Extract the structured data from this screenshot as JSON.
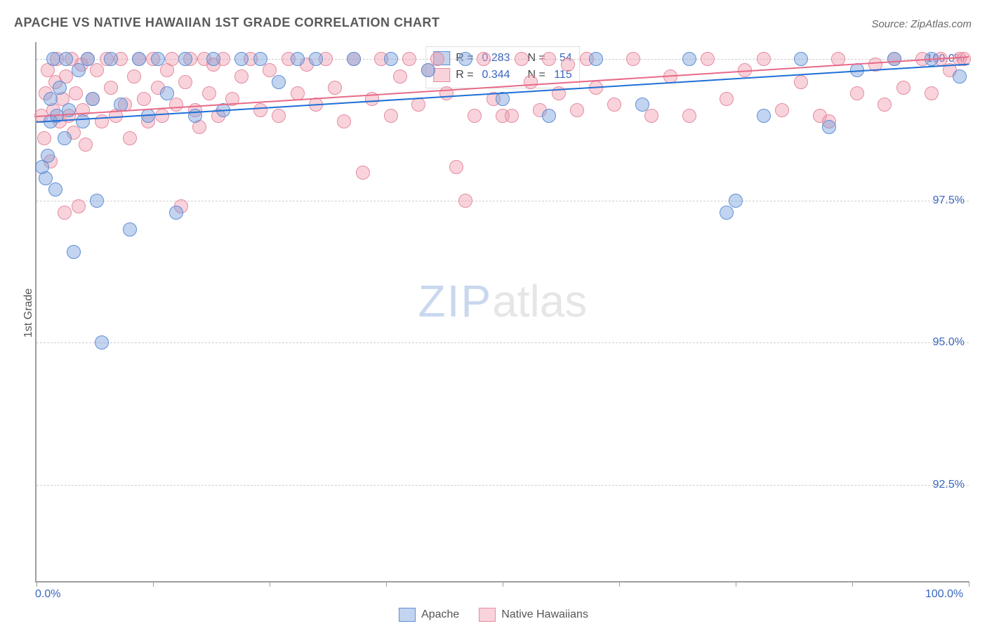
{
  "title": "APACHE VS NATIVE HAWAIIAN 1ST GRADE CORRELATION CHART",
  "source": "Source: ZipAtlas.com",
  "watermark": {
    "zip": "ZIP",
    "atlas": "atlas"
  },
  "yaxis": {
    "label": "1st Grade"
  },
  "chart": {
    "type": "scatter",
    "xlim": [
      0,
      100
    ],
    "ylim": [
      90.8,
      100.3
    ],
    "background_color": "#ffffff",
    "grid_color": "#cfcfcf",
    "axis_color": "#9e9e9e",
    "yticks": [
      92.5,
      95.0,
      97.5,
      100.0
    ],
    "ytick_labels": [
      "92.5%",
      "95.0%",
      "97.5%",
      "100.0%"
    ],
    "xticks": [
      0,
      12.5,
      25,
      37.5,
      50,
      62.5,
      75,
      87.5,
      100
    ],
    "xaxis_end_labels": {
      "left": "0.0%",
      "right": "100.0%"
    },
    "tick_label_color": "#3a66c0",
    "tick_label_fontsize": 16,
    "marker_radius": 10,
    "marker_border_width": 1.2
  },
  "series": {
    "apache": {
      "label": "Apache",
      "fill": "rgba(120,160,220,0.45)",
      "stroke": "#5f8fd6",
      "line_color": "#1f6fd6",
      "regression": {
        "y_at_x0": 98.9,
        "y_at_x100": 99.92
      },
      "stats": {
        "R": "0.283",
        "N": "54"
      },
      "points": [
        [
          0.6,
          98.1
        ],
        [
          1.0,
          97.9
        ],
        [
          1.2,
          98.3
        ],
        [
          1.5,
          98.9
        ],
        [
          1.5,
          99.3
        ],
        [
          1.8,
          100.0
        ],
        [
          2.0,
          97.7
        ],
        [
          2.2,
          99.0
        ],
        [
          2.5,
          99.5
        ],
        [
          3.0,
          98.6
        ],
        [
          3.2,
          100.0
        ],
        [
          3.5,
          99.1
        ],
        [
          4.0,
          96.6
        ],
        [
          4.5,
          99.8
        ],
        [
          5.0,
          98.9
        ],
        [
          5.5,
          100.0
        ],
        [
          6.0,
          99.3
        ],
        [
          6.5,
          97.5
        ],
        [
          7.0,
          95.0
        ],
        [
          8.0,
          100.0
        ],
        [
          9.0,
          99.2
        ],
        [
          10.0,
          97.0
        ],
        [
          11.0,
          100.0
        ],
        [
          12.0,
          99.0
        ],
        [
          13.0,
          100.0
        ],
        [
          14.0,
          99.4
        ],
        [
          15.0,
          97.3
        ],
        [
          16.0,
          100.0
        ],
        [
          17.0,
          99.0
        ],
        [
          19.0,
          100.0
        ],
        [
          20.0,
          99.1
        ],
        [
          22.0,
          100.0
        ],
        [
          24.0,
          100.0
        ],
        [
          26.0,
          99.6
        ],
        [
          28.0,
          100.0
        ],
        [
          30.0,
          100.0
        ],
        [
          34.0,
          100.0
        ],
        [
          38.0,
          100.0
        ],
        [
          42.0,
          99.8
        ],
        [
          46.0,
          100.0
        ],
        [
          50.0,
          99.3
        ],
        [
          55.0,
          99.0
        ],
        [
          60.0,
          100.0
        ],
        [
          65.0,
          99.2
        ],
        [
          70.0,
          100.0
        ],
        [
          74.0,
          97.3
        ],
        [
          75.0,
          97.5
        ],
        [
          78.0,
          99.0
        ],
        [
          82.0,
          100.0
        ],
        [
          85.0,
          98.8
        ],
        [
          88.0,
          99.8
        ],
        [
          92.0,
          100.0
        ],
        [
          96.0,
          100.0
        ],
        [
          99.0,
          99.7
        ]
      ]
    },
    "hawaiian": {
      "label": "Native Hawaiians",
      "fill": "rgba(240,150,170,0.42)",
      "stroke": "#e48ca0",
      "line_color": "#e86a88",
      "regression": {
        "y_at_x0": 99.0,
        "y_at_x100": 100.05
      },
      "stats": {
        "R": "0.344",
        "N": "115"
      },
      "points": [
        [
          0.5,
          99.0
        ],
        [
          0.8,
          98.6
        ],
        [
          1.0,
          99.4
        ],
        [
          1.2,
          99.8
        ],
        [
          1.5,
          98.2
        ],
        [
          1.8,
          99.1
        ],
        [
          2.0,
          99.6
        ],
        [
          2.2,
          100.0
        ],
        [
          2.5,
          98.9
        ],
        [
          2.8,
          99.3
        ],
        [
          3.0,
          97.3
        ],
        [
          3.2,
          99.7
        ],
        [
          3.5,
          99.0
        ],
        [
          3.8,
          100.0
        ],
        [
          4.0,
          98.7
        ],
        [
          4.2,
          99.4
        ],
        [
          4.5,
          97.4
        ],
        [
          4.8,
          99.9
        ],
        [
          5.0,
          99.1
        ],
        [
          5.3,
          98.5
        ],
        [
          5.5,
          100.0
        ],
        [
          6.0,
          99.3
        ],
        [
          6.5,
          99.8
        ],
        [
          7.0,
          98.9
        ],
        [
          7.5,
          100.0
        ],
        [
          8.0,
          99.5
        ],
        [
          8.5,
          99.0
        ],
        [
          9.0,
          100.0
        ],
        [
          9.5,
          99.2
        ],
        [
          10.0,
          98.6
        ],
        [
          10.5,
          99.7
        ],
        [
          11.0,
          100.0
        ],
        [
          11.5,
          99.3
        ],
        [
          12.0,
          98.9
        ],
        [
          12.5,
          100.0
        ],
        [
          13.0,
          99.5
        ],
        [
          13.5,
          99.0
        ],
        [
          14.0,
          99.8
        ],
        [
          14.5,
          100.0
        ],
        [
          15.0,
          99.2
        ],
        [
          15.5,
          97.4
        ],
        [
          16.0,
          99.6
        ],
        [
          16.5,
          100.0
        ],
        [
          17.0,
          99.1
        ],
        [
          17.5,
          98.8
        ],
        [
          18.0,
          100.0
        ],
        [
          18.5,
          99.4
        ],
        [
          19.0,
          99.9
        ],
        [
          19.5,
          99.0
        ],
        [
          20.0,
          100.0
        ],
        [
          21.0,
          99.3
        ],
        [
          22.0,
          99.7
        ],
        [
          23.0,
          100.0
        ],
        [
          24.0,
          99.1
        ],
        [
          25.0,
          99.8
        ],
        [
          26.0,
          99.0
        ],
        [
          27.0,
          100.0
        ],
        [
          28.0,
          99.4
        ],
        [
          29.0,
          99.9
        ],
        [
          30.0,
          99.2
        ],
        [
          31.0,
          100.0
        ],
        [
          32.0,
          99.5
        ],
        [
          33.0,
          98.9
        ],
        [
          34.0,
          100.0
        ],
        [
          35.0,
          98.0
        ],
        [
          36.0,
          99.3
        ],
        [
          37.0,
          100.0
        ],
        [
          38.0,
          99.0
        ],
        [
          39.0,
          99.7
        ],
        [
          40.0,
          100.0
        ],
        [
          41.0,
          99.2
        ],
        [
          42.0,
          99.8
        ],
        [
          43.0,
          100.0
        ],
        [
          44.0,
          99.4
        ],
        [
          45.0,
          98.1
        ],
        [
          46.0,
          97.5
        ],
        [
          47.0,
          99.0
        ],
        [
          48.0,
          100.0
        ],
        [
          49.0,
          99.3
        ],
        [
          50.0,
          99.0
        ],
        [
          51.0,
          99.0
        ],
        [
          52.0,
          100.0
        ],
        [
          53.0,
          99.6
        ],
        [
          54.0,
          99.1
        ],
        [
          55.0,
          100.0
        ],
        [
          56.0,
          99.4
        ],
        [
          57.0,
          99.9
        ],
        [
          58.0,
          99.1
        ],
        [
          59.0,
          100.0
        ],
        [
          60.0,
          99.5
        ],
        [
          62.0,
          99.2
        ],
        [
          64.0,
          100.0
        ],
        [
          66.0,
          99.0
        ],
        [
          68.0,
          99.7
        ],
        [
          70.0,
          99.0
        ],
        [
          72.0,
          100.0
        ],
        [
          74.0,
          99.3
        ],
        [
          76.0,
          99.8
        ],
        [
          78.0,
          100.0
        ],
        [
          80.0,
          99.1
        ],
        [
          82.0,
          99.6
        ],
        [
          84.0,
          99.0
        ],
        [
          85.0,
          98.9
        ],
        [
          86.0,
          100.0
        ],
        [
          88.0,
          99.4
        ],
        [
          90.0,
          99.9
        ],
        [
          91.0,
          99.2
        ],
        [
          92.0,
          100.0
        ],
        [
          93.0,
          99.5
        ],
        [
          95.0,
          100.0
        ],
        [
          96.0,
          99.4
        ],
        [
          97.0,
          100.0
        ],
        [
          98.0,
          99.8
        ],
        [
          99.0,
          100.0
        ],
        [
          99.5,
          100.0
        ]
      ]
    }
  },
  "legend": {
    "apache": "Apache",
    "hawaiian": "Native Hawaiians"
  },
  "stats_labels": {
    "R": "R =",
    "N": "N ="
  }
}
